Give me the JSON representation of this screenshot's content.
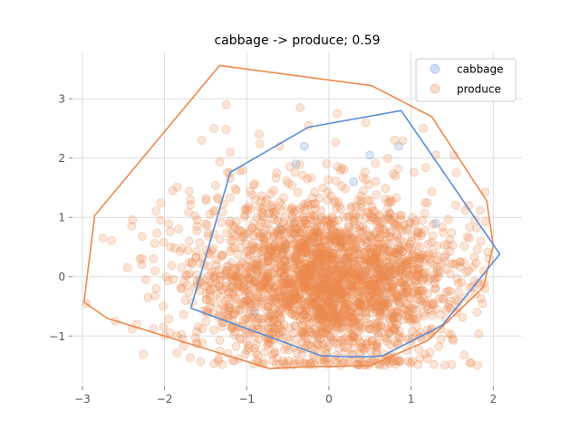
{
  "chart_data": {
    "type": "scatter",
    "title": "cabbage -> produce; 0.59",
    "xlabel": "",
    "ylabel": "",
    "xlim": [
      -3.12,
      2.35
    ],
    "ylim": [
      -1.85,
      3.78
    ],
    "xticks": [
      -3,
      -2,
      -1,
      0,
      1,
      2
    ],
    "yticks": [
      -1,
      0,
      1,
      2,
      3
    ],
    "grid": true,
    "legend_position": "top-right",
    "series": [
      {
        "name": "cabbage",
        "color": "#5b8fd6",
        "marker": "circle",
        "alpha": 0.25,
        "sample_points": [
          [
            -0.3,
            2.2
          ],
          [
            0.5,
            2.05
          ],
          [
            0.85,
            2.2
          ],
          [
            -0.4,
            1.9
          ],
          [
            0.3,
            1.6
          ],
          [
            -0.6,
            0.8
          ],
          [
            0.2,
            0.3
          ],
          [
            0.7,
            -0.4
          ],
          [
            -0.9,
            -0.6
          ],
          [
            1.3,
            0.9
          ]
        ],
        "hull": [
          [
            -1.68,
            -0.53
          ],
          [
            -1.2,
            1.76
          ],
          [
            -0.25,
            2.52
          ],
          [
            0.88,
            2.8
          ],
          [
            2.08,
            0.38
          ],
          [
            1.38,
            -0.82
          ],
          [
            0.66,
            -1.33
          ],
          [
            0.52,
            -1.35
          ],
          [
            0.22,
            -1.35
          ],
          [
            -0.1,
            -1.33
          ],
          [
            -1.68,
            -0.53
          ]
        ]
      },
      {
        "name": "produce",
        "color": "#ec8a4e",
        "marker": "circle",
        "alpha": 0.25,
        "approx_center": [
          -0.05,
          -0.05
        ],
        "approx_spread": [
          0.78,
          0.72
        ],
        "outlier_points": [
          [
            -2.95,
            -0.45
          ],
          [
            -2.75,
            0.65
          ],
          [
            -2.6,
            -0.75
          ],
          [
            -2.45,
            0.15
          ],
          [
            -2.3,
            0.3
          ],
          [
            -2.2,
            -0.35
          ],
          [
            -2.05,
            0.95
          ],
          [
            -1.9,
            1.45
          ],
          [
            -1.85,
            -1.0
          ],
          [
            -1.55,
            2.3
          ],
          [
            -1.45,
            1.05
          ],
          [
            -1.4,
            2.5
          ],
          [
            -1.2,
            2.1
          ],
          [
            -1.05,
            1.8
          ],
          [
            -0.85,
            2.4
          ],
          [
            -0.35,
            2.85
          ],
          [
            -0.25,
            2.55
          ],
          [
            0.1,
            2.75
          ],
          [
            0.45,
            2.6
          ],
          [
            1.15,
            2.5
          ],
          [
            1.3,
            2.05
          ],
          [
            1.55,
            1.75
          ],
          [
            1.7,
            1.2
          ],
          [
            1.85,
            0.6
          ],
          [
            1.7,
            0.1
          ],
          [
            1.9,
            -0.2
          ],
          [
            1.55,
            -0.6
          ],
          [
            1.2,
            -0.9
          ],
          [
            -1.25,
            2.9
          ],
          [
            -2.1,
            -0.2
          ],
          [
            0.8,
            2.3
          ],
          [
            -0.6,
            2.2
          ],
          [
            1.95,
            0.3
          ],
          [
            -1.7,
            0.6
          ],
          [
            -2.4,
            0.85
          ]
        ],
        "hull": [
          [
            -2.98,
            -0.43
          ],
          [
            -2.85,
            1.03
          ],
          [
            -1.33,
            3.56
          ],
          [
            0.52,
            3.22
          ],
          [
            1.25,
            2.7
          ],
          [
            1.92,
            1.28
          ],
          [
            2.0,
            0.53
          ],
          [
            1.88,
            -0.18
          ],
          [
            1.2,
            -1.08
          ],
          [
            0.5,
            -1.5
          ],
          [
            -0.3,
            -1.52
          ],
          [
            -0.72,
            -1.55
          ],
          [
            -2.7,
            -0.7
          ],
          [
            -2.98,
            -0.43
          ]
        ]
      }
    ]
  }
}
